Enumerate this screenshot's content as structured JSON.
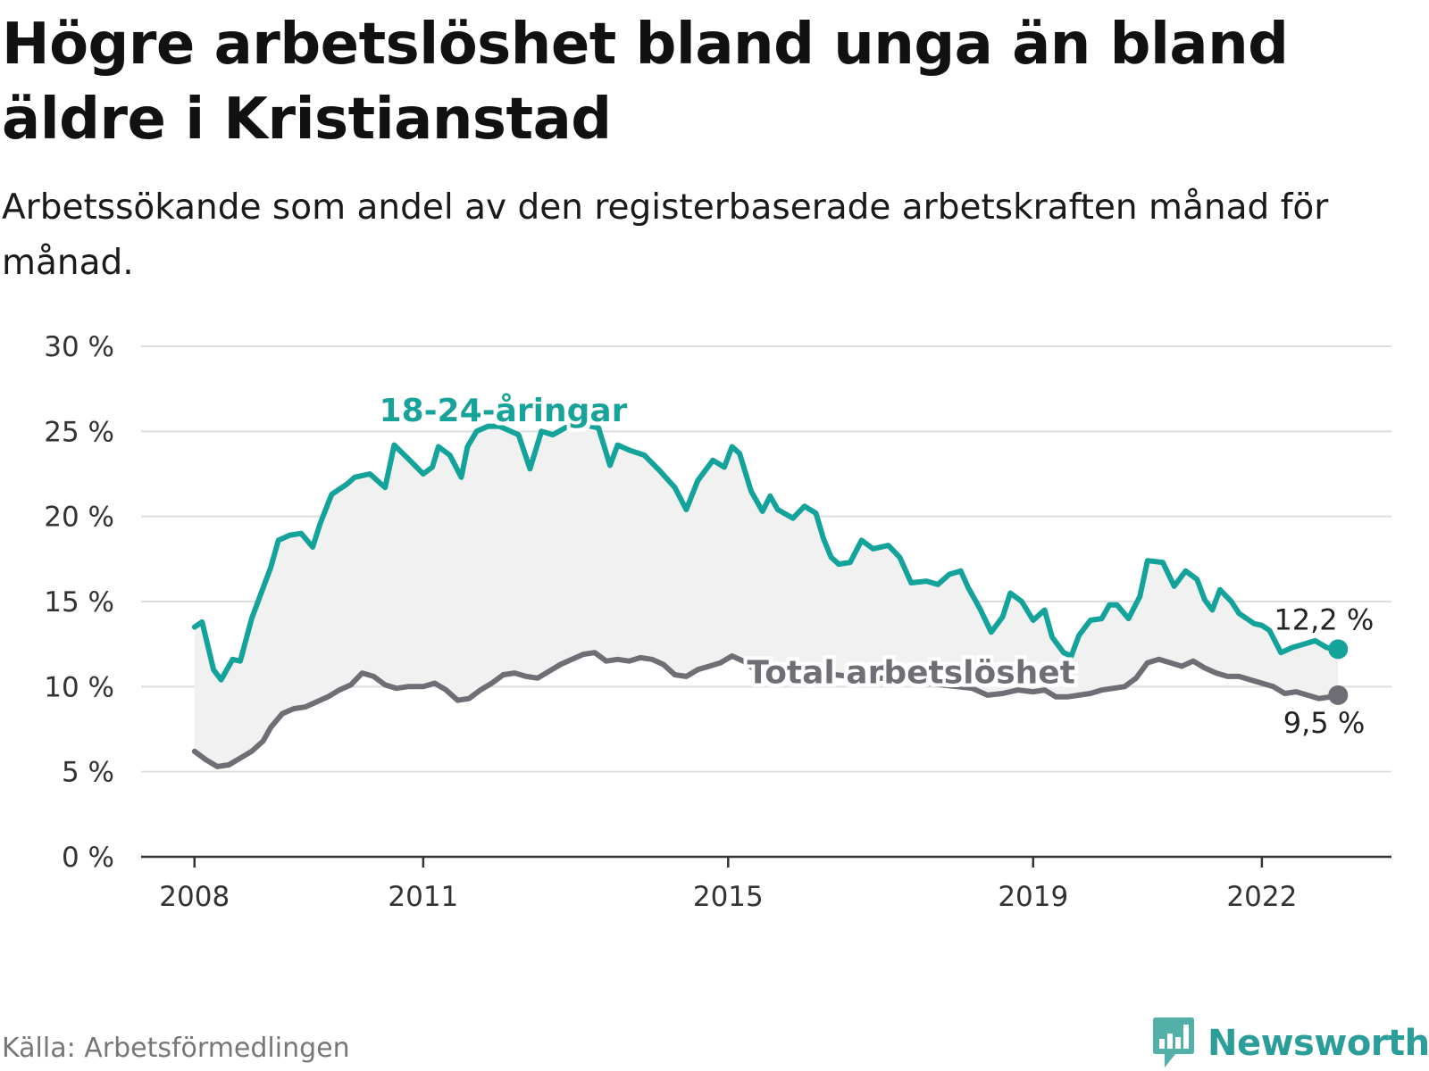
{
  "title": "Högre arbetslöshet bland unga än bland äldre i Kristianstad",
  "subtitle": "Arbetssökande som andel av den registerbaserade arbetskraften månad för månad.",
  "source": "Källa: Arbetsförmedlingen",
  "brand": {
    "name": "Newsworthy",
    "icon": "bar-chart-speech-bubble-icon"
  },
  "colors": {
    "youth": "#14a39a",
    "total": "#6e6e74",
    "band": "#f1f1f2",
    "grid": "#dddddd",
    "axis": "#333333"
  },
  "chart_data": {
    "type": "line",
    "title": "Högre arbetslöshet bland unga än bland äldre i Kristianstad",
    "xlabel": "",
    "ylabel": "",
    "ylim": [
      0,
      30
    ],
    "xlim": [
      2007.3,
      2023.7
    ],
    "x_ticks": [
      2008,
      2011,
      2015,
      2019,
      2022
    ],
    "x_tick_labels": [
      "2008",
      "2011",
      "2015",
      "2019",
      "2022"
    ],
    "y_ticks": [
      0,
      5,
      10,
      15,
      20,
      25,
      30
    ],
    "y_tick_labels": [
      "0 %",
      "5 %",
      "10 %",
      "15 %",
      "20 %",
      "25 %",
      "30 %"
    ],
    "grid": true,
    "legend": "direct labels on lines",
    "series": [
      {
        "name": "18-24-åringar",
        "label": "18-24-åringar",
        "end_label": "12,2 %",
        "points": [
          [
            2008.0,
            13.5
          ],
          [
            2008.1,
            13.8
          ],
          [
            2008.25,
            11.0
          ],
          [
            2008.35,
            10.4
          ],
          [
            2008.5,
            11.6
          ],
          [
            2008.6,
            11.5
          ],
          [
            2008.75,
            14.0
          ],
          [
            2009.0,
            17.0
          ],
          [
            2009.1,
            18.6
          ],
          [
            2009.25,
            18.9
          ],
          [
            2009.4,
            19.0
          ],
          [
            2009.55,
            18.2
          ],
          [
            2009.65,
            19.6
          ],
          [
            2009.8,
            21.3
          ],
          [
            2010.0,
            21.9
          ],
          [
            2010.1,
            22.3
          ],
          [
            2010.3,
            22.5
          ],
          [
            2010.5,
            21.7
          ],
          [
            2010.62,
            24.2
          ],
          [
            2010.8,
            23.4
          ],
          [
            2011.0,
            22.5
          ],
          [
            2011.12,
            22.9
          ],
          [
            2011.2,
            24.1
          ],
          [
            2011.35,
            23.6
          ],
          [
            2011.5,
            22.3
          ],
          [
            2011.58,
            24.1
          ],
          [
            2011.7,
            25.0
          ],
          [
            2011.85,
            25.3
          ],
          [
            2012.0,
            25.3
          ],
          [
            2012.25,
            24.8
          ],
          [
            2012.4,
            22.8
          ],
          [
            2012.55,
            25.0
          ],
          [
            2012.7,
            24.8
          ],
          [
            2012.9,
            25.3
          ],
          [
            2013.1,
            25.4
          ],
          [
            2013.3,
            25.2
          ],
          [
            2013.45,
            23.0
          ],
          [
            2013.55,
            24.2
          ],
          [
            2013.7,
            23.9
          ],
          [
            2013.9,
            23.6
          ],
          [
            2014.1,
            22.7
          ],
          [
            2014.3,
            21.7
          ],
          [
            2014.45,
            20.4
          ],
          [
            2014.6,
            22.1
          ],
          [
            2014.8,
            23.3
          ],
          [
            2014.95,
            22.9
          ],
          [
            2015.05,
            24.1
          ],
          [
            2015.15,
            23.7
          ],
          [
            2015.3,
            21.5
          ],
          [
            2015.45,
            20.3
          ],
          [
            2015.55,
            21.2
          ],
          [
            2015.65,
            20.4
          ],
          [
            2015.85,
            19.9
          ],
          [
            2016.0,
            20.6
          ],
          [
            2016.15,
            20.2
          ],
          [
            2016.25,
            18.7
          ],
          [
            2016.35,
            17.6
          ],
          [
            2016.45,
            17.2
          ],
          [
            2016.6,
            17.3
          ],
          [
            2016.75,
            18.6
          ],
          [
            2016.9,
            18.1
          ],
          [
            2017.1,
            18.3
          ],
          [
            2017.25,
            17.6
          ],
          [
            2017.4,
            16.1
          ],
          [
            2017.6,
            16.2
          ],
          [
            2017.75,
            16.0
          ],
          [
            2017.9,
            16.6
          ],
          [
            2018.05,
            16.8
          ],
          [
            2018.15,
            15.8
          ],
          [
            2018.3,
            14.6
          ],
          [
            2018.45,
            13.2
          ],
          [
            2018.6,
            14.1
          ],
          [
            2018.7,
            15.5
          ],
          [
            2018.85,
            15.0
          ],
          [
            2019.0,
            13.9
          ],
          [
            2019.15,
            14.5
          ],
          [
            2019.25,
            12.9
          ],
          [
            2019.4,
            12.0
          ],
          [
            2019.5,
            11.8
          ],
          [
            2019.6,
            13.0
          ],
          [
            2019.75,
            13.9
          ],
          [
            2019.9,
            14.0
          ],
          [
            2020.0,
            14.8
          ],
          [
            2020.1,
            14.8
          ],
          [
            2020.25,
            14.0
          ],
          [
            2020.4,
            15.3
          ],
          [
            2020.5,
            17.4
          ],
          [
            2020.7,
            17.3
          ],
          [
            2020.85,
            15.9
          ],
          [
            2021.0,
            16.8
          ],
          [
            2021.15,
            16.3
          ],
          [
            2021.25,
            15.1
          ],
          [
            2021.35,
            14.5
          ],
          [
            2021.45,
            15.7
          ],
          [
            2021.6,
            15.0
          ],
          [
            2021.7,
            14.3
          ],
          [
            2021.9,
            13.7
          ],
          [
            2022.0,
            13.6
          ],
          [
            2022.1,
            13.3
          ],
          [
            2022.25,
            12.0
          ],
          [
            2022.4,
            12.3
          ],
          [
            2022.55,
            12.5
          ],
          [
            2022.7,
            12.7
          ],
          [
            2022.85,
            12.3
          ],
          [
            2023.0,
            12.2
          ]
        ]
      },
      {
        "name": "Total arbetslöshet",
        "label": "Total arbetslöshet",
        "end_label": "9,5 %",
        "points": [
          [
            2008.0,
            6.2
          ],
          [
            2008.15,
            5.7
          ],
          [
            2008.3,
            5.3
          ],
          [
            2008.45,
            5.4
          ],
          [
            2008.6,
            5.8
          ],
          [
            2008.75,
            6.2
          ],
          [
            2008.9,
            6.8
          ],
          [
            2009.0,
            7.6
          ],
          [
            2009.15,
            8.4
          ],
          [
            2009.3,
            8.7
          ],
          [
            2009.45,
            8.8
          ],
          [
            2009.6,
            9.1
          ],
          [
            2009.75,
            9.4
          ],
          [
            2009.9,
            9.8
          ],
          [
            2010.05,
            10.1
          ],
          [
            2010.2,
            10.8
          ],
          [
            2010.35,
            10.6
          ],
          [
            2010.5,
            10.1
          ],
          [
            2010.65,
            9.9
          ],
          [
            2010.8,
            10.0
          ],
          [
            2011.0,
            10.0
          ],
          [
            2011.15,
            10.2
          ],
          [
            2011.3,
            9.8
          ],
          [
            2011.45,
            9.2
          ],
          [
            2011.6,
            9.3
          ],
          [
            2011.75,
            9.8
          ],
          [
            2011.9,
            10.2
          ],
          [
            2012.05,
            10.7
          ],
          [
            2012.2,
            10.8
          ],
          [
            2012.35,
            10.6
          ],
          [
            2012.5,
            10.5
          ],
          [
            2012.65,
            10.9
          ],
          [
            2012.8,
            11.3
          ],
          [
            2012.95,
            11.6
          ],
          [
            2013.1,
            11.9
          ],
          [
            2013.25,
            12.0
          ],
          [
            2013.4,
            11.5
          ],
          [
            2013.55,
            11.6
          ],
          [
            2013.7,
            11.5
          ],
          [
            2013.85,
            11.7
          ],
          [
            2014.0,
            11.6
          ],
          [
            2014.15,
            11.3
          ],
          [
            2014.3,
            10.7
          ],
          [
            2014.45,
            10.6
          ],
          [
            2014.6,
            11.0
          ],
          [
            2014.75,
            11.2
          ],
          [
            2014.9,
            11.4
          ],
          [
            2015.05,
            11.8
          ],
          [
            2015.2,
            11.5
          ],
          [
            2015.35,
            11.0
          ],
          [
            2015.5,
            10.8
          ],
          [
            2015.65,
            11.0
          ],
          [
            2015.8,
            11.2
          ],
          [
            2016.0,
            11.1
          ],
          [
            2016.2,
            10.9
          ],
          [
            2016.4,
            10.7
          ],
          [
            2016.6,
            10.6
          ],
          [
            2016.8,
            10.5
          ],
          [
            2017.0,
            10.5
          ],
          [
            2017.2,
            10.4
          ],
          [
            2017.4,
            10.3
          ],
          [
            2017.6,
            10.2
          ],
          [
            2017.8,
            10.1
          ],
          [
            2018.0,
            10.0
          ],
          [
            2018.2,
            9.9
          ],
          [
            2018.4,
            9.5
          ],
          [
            2018.6,
            9.6
          ],
          [
            2018.8,
            9.8
          ],
          [
            2019.0,
            9.7
          ],
          [
            2019.15,
            9.8
          ],
          [
            2019.3,
            9.4
          ],
          [
            2019.45,
            9.4
          ],
          [
            2019.6,
            9.5
          ],
          [
            2019.75,
            9.6
          ],
          [
            2019.9,
            9.8
          ],
          [
            2020.05,
            9.9
          ],
          [
            2020.2,
            10.0
          ],
          [
            2020.35,
            10.5
          ],
          [
            2020.5,
            11.4
          ],
          [
            2020.65,
            11.6
          ],
          [
            2020.8,
            11.4
          ],
          [
            2020.95,
            11.2
          ],
          [
            2021.1,
            11.5
          ],
          [
            2021.25,
            11.1
          ],
          [
            2021.4,
            10.8
          ],
          [
            2021.55,
            10.6
          ],
          [
            2021.7,
            10.6
          ],
          [
            2021.85,
            10.4
          ],
          [
            2022.0,
            10.2
          ],
          [
            2022.15,
            10.0
          ],
          [
            2022.3,
            9.6
          ],
          [
            2022.45,
            9.7
          ],
          [
            2022.6,
            9.5
          ],
          [
            2022.75,
            9.3
          ],
          [
            2022.9,
            9.4
          ],
          [
            2023.0,
            9.5
          ]
        ]
      }
    ]
  }
}
